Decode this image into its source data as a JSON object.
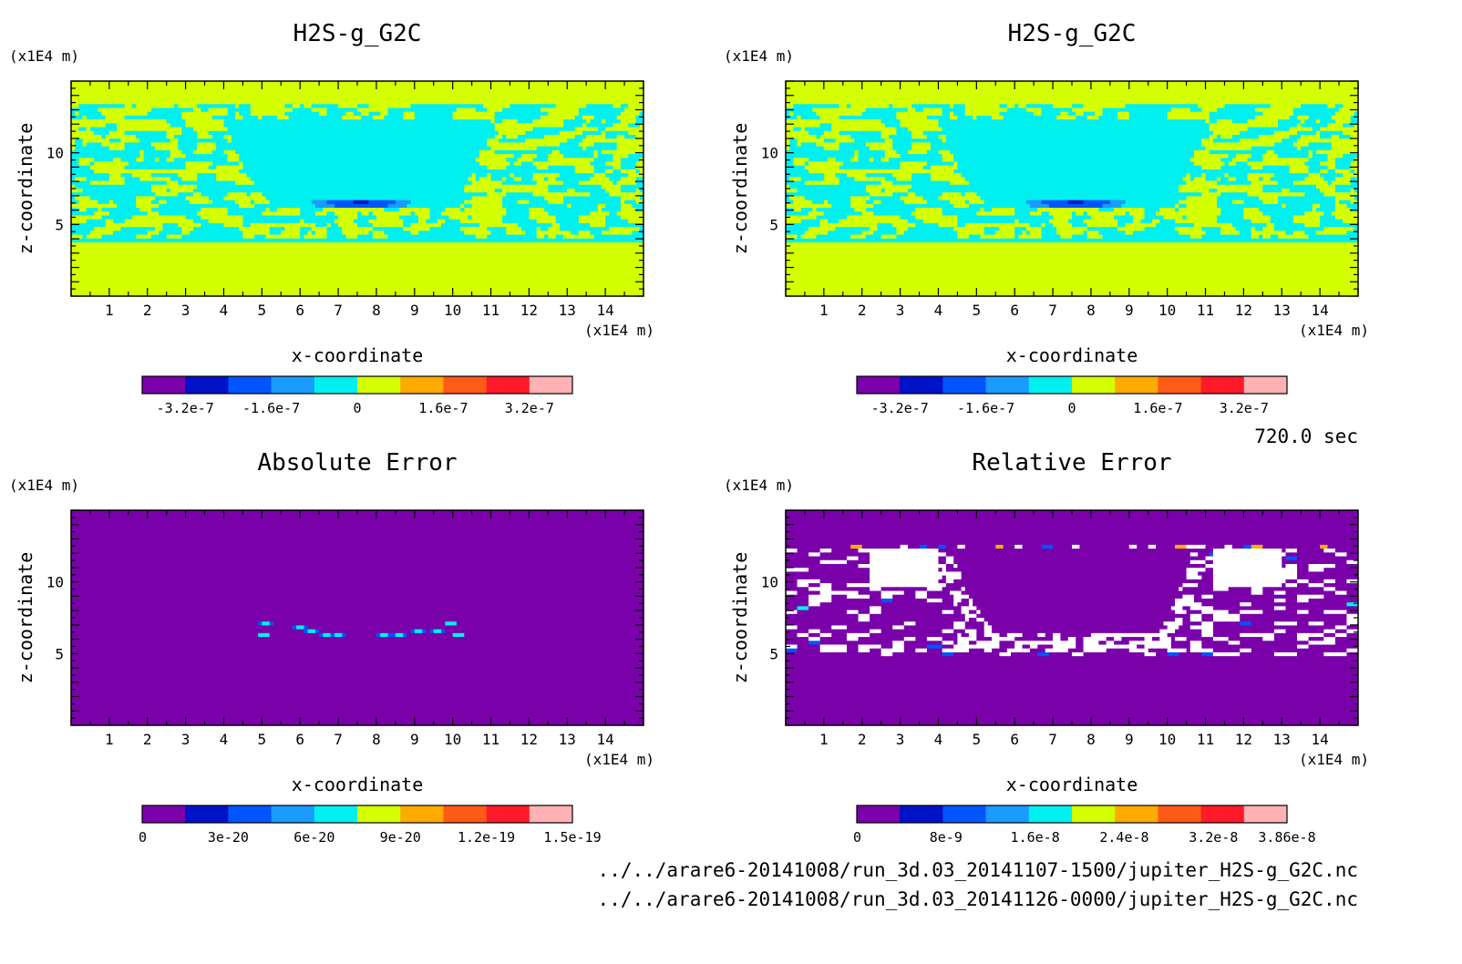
{
  "figure": {
    "time_label": "720.0 sec",
    "file_paths": [
      "../../arare6-20141008/run_3d.03_20141107-1500/jupiter_H2S-g_G2C.nc",
      "../../arare6-20141008/run_3d.03_20141126-0000/jupiter_H2S-g_G2C.nc"
    ]
  },
  "colors": {
    "level_palette": [
      "#7a00aa",
      "#0012c8",
      "#0055ff",
      "#1a9bff",
      "#00f0f0",
      "#d4ff00",
      "#ffaa00",
      "#ff5a16",
      "#ff1a2a",
      "#ffb2b4"
    ],
    "missing": "#ffffff"
  },
  "chart_data": [
    {
      "type": "heatmap",
      "title": "H2S-g_G2C",
      "xlabel": "x-coordinate",
      "ylabel": "z-coordinate",
      "x_unit": "(x1E4 m)",
      "y_unit": "(x1E4 m)",
      "xlim": [
        0,
        15
      ],
      "ylim": [
        0,
        15
      ],
      "x_ticks": [
        1,
        2,
        3,
        4,
        5,
        6,
        7,
        8,
        9,
        10,
        11,
        12,
        13,
        14
      ],
      "y_ticks": [
        5,
        10
      ],
      "pattern": "field",
      "colorbar": {
        "range": [
          -4e-07,
          4e-07
        ],
        "levels": 10,
        "labels": [
          {
            "value": -3.2e-07,
            "text": "-3.2e-7"
          },
          {
            "value": -1.6e-07,
            "text": "-1.6e-7"
          },
          {
            "value": 0,
            "text": "0"
          },
          {
            "value": 1.6e-07,
            "text": "1.6e-7"
          },
          {
            "value": 3.2e-07,
            "text": "3.2e-7"
          }
        ]
      }
    },
    {
      "type": "heatmap",
      "title": "H2S-g_G2C",
      "xlabel": "x-coordinate",
      "ylabel": "z-coordinate",
      "x_unit": "(x1E4 m)",
      "y_unit": "(x1E4 m)",
      "xlim": [
        0,
        15
      ],
      "ylim": [
        0,
        15
      ],
      "x_ticks": [
        1,
        2,
        3,
        4,
        5,
        6,
        7,
        8,
        9,
        10,
        11,
        12,
        13,
        14
      ],
      "y_ticks": [
        5,
        10
      ],
      "pattern": "field",
      "colorbar": {
        "range": [
          -4e-07,
          4e-07
        ],
        "levels": 10,
        "labels": [
          {
            "value": -3.2e-07,
            "text": "-3.2e-7"
          },
          {
            "value": -1.6e-07,
            "text": "-1.6e-7"
          },
          {
            "value": 0,
            "text": "0"
          },
          {
            "value": 1.6e-07,
            "text": "1.6e-7"
          },
          {
            "value": 3.2e-07,
            "text": "3.2e-7"
          }
        ]
      }
    },
    {
      "type": "heatmap",
      "title": "Absolute Error",
      "xlabel": "x-coordinate",
      "ylabel": "z-coordinate",
      "x_unit": "(x1E4 m)",
      "y_unit": "(x1E4 m)",
      "xlim": [
        0,
        15
      ],
      "ylim": [
        0,
        15
      ],
      "x_ticks": [
        1,
        2,
        3,
        4,
        5,
        6,
        7,
        8,
        9,
        10,
        11,
        12,
        13,
        14
      ],
      "y_ticks": [
        5,
        10
      ],
      "pattern": "abs_error",
      "colorbar": {
        "range": [
          0,
          1.5e-19
        ],
        "levels": 10,
        "labels": [
          {
            "value": 0,
            "text": "0"
          },
          {
            "value": 3e-20,
            "text": "3e-20"
          },
          {
            "value": 6e-20,
            "text": "6e-20"
          },
          {
            "value": 9e-20,
            "text": "9e-20"
          },
          {
            "value": 1.2e-19,
            "text": "1.2e-19"
          },
          {
            "value": 1.5e-19,
            "text": "1.5e-19"
          }
        ]
      }
    },
    {
      "type": "heatmap",
      "title": "Relative Error",
      "xlabel": "x-coordinate",
      "ylabel": "z-coordinate",
      "x_unit": "(x1E4 m)",
      "y_unit": "(x1E4 m)",
      "xlim": [
        0,
        15
      ],
      "ylim": [
        0,
        15
      ],
      "x_ticks": [
        1,
        2,
        3,
        4,
        5,
        6,
        7,
        8,
        9,
        10,
        11,
        12,
        13,
        14
      ],
      "y_ticks": [
        5,
        10
      ],
      "pattern": "rel_error",
      "colorbar": {
        "range": [
          0,
          3.86e-08
        ],
        "levels": 10,
        "labels": [
          {
            "value": 0,
            "text": "0"
          },
          {
            "value": 8e-09,
            "text": "8e-9"
          },
          {
            "value": 1.6e-08,
            "text": "1.6e-8"
          },
          {
            "value": 2.4e-08,
            "text": "2.4e-8"
          },
          {
            "value": 3.2e-08,
            "text": "3.2e-8"
          },
          {
            "value": 3.86e-08,
            "text": "3.86e-8"
          }
        ]
      }
    }
  ]
}
